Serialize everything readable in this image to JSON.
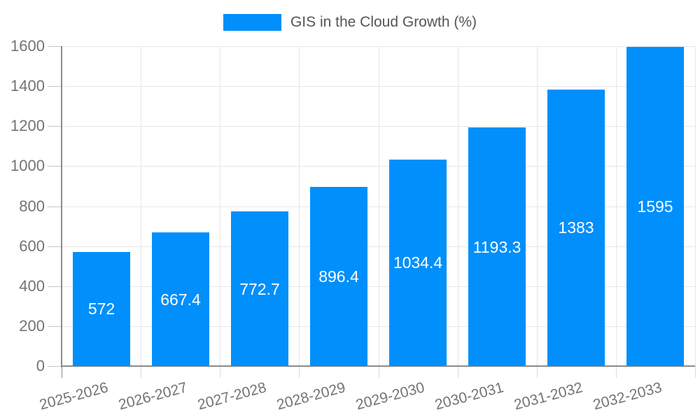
{
  "chart_data": {
    "type": "bar",
    "title": "GIS in the Cloud Growth (%)",
    "legend": {
      "position": "top",
      "label": "GIS in the Cloud Growth (%)"
    },
    "categories": [
      "2025-2026",
      "2026-2027",
      "2027-2028",
      "2028-2029",
      "2029-2030",
      "2030-2031",
      "2031-2032",
      "2032-2033"
    ],
    "series": [
      {
        "name": "GIS in the Cloud Growth (%)",
        "values": [
          572,
          667.4,
          772.7,
          896.4,
          1034.4,
          1193.3,
          1383,
          1595
        ]
      }
    ],
    "value_labels": [
      "572",
      "667.4",
      "772.7",
      "896.4",
      "1034.4",
      "1193.3",
      "1383",
      "1595"
    ],
    "xlabel": "",
    "ylabel": "",
    "ylim": [
      0,
      1600
    ],
    "ytick_step": 200,
    "yticks": [
      "0",
      "200",
      "400",
      "600",
      "800",
      "1000",
      "1200",
      "1400",
      "1600"
    ],
    "grid": true,
    "legend_visible": true,
    "colors": {
      "bar": "#008ffb",
      "bar_label": "#ffffff",
      "gridline": "#e7e7e7",
      "axis_line": "#8b8b8b",
      "tick": "#c6c6c6",
      "tick_label": "#737373",
      "legend_text": "#555555",
      "background": "#ffffff"
    }
  }
}
